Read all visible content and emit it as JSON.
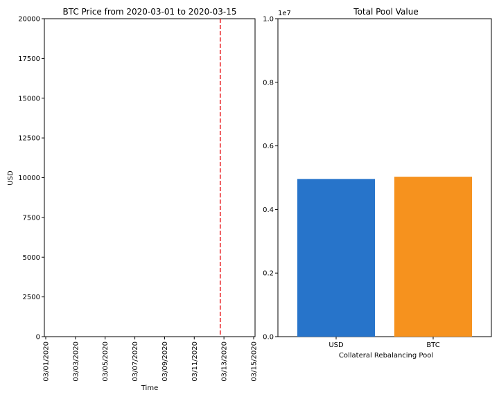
{
  "chart_data": [
    {
      "type": "line",
      "title": "BTC Price from 2020-03-01 to 2020-03-15",
      "xlabel": "Time",
      "ylabel": "USD",
      "x_ticks": [
        "03/01/2020",
        "03/03/2020",
        "03/05/2020",
        "03/07/2020",
        "03/09/2020",
        "03/11/2020",
        "03/13/2020",
        "03/15/2020"
      ],
      "x_range": [
        "2020-03-01",
        "2020-03-15"
      ],
      "y_ticks": [
        0,
        2500,
        5000,
        7500,
        10000,
        12500,
        15000,
        17500,
        20000
      ],
      "ylim": [
        0,
        20000
      ],
      "series": [],
      "marker_line": {
        "x": "2020-03-12T18:00",
        "color": "#e8191c",
        "style": "dashed"
      },
      "grid": false
    },
    {
      "type": "bar",
      "title": "Total Pool Value",
      "xlabel": "Collateral Rebalancing Pool",
      "ylabel": "",
      "categories": [
        "USD",
        "BTC"
      ],
      "values": [
        4960000,
        5030000
      ],
      "colors": [
        "#2774ca",
        "#f6921e"
      ],
      "y_ticks": [
        "0.0",
        "0.2",
        "0.4",
        "0.6",
        "0.8",
        "1.0"
      ],
      "y_multiplier": "1e7",
      "ylim": [
        0,
        10000000
      ],
      "grid": false
    }
  ]
}
